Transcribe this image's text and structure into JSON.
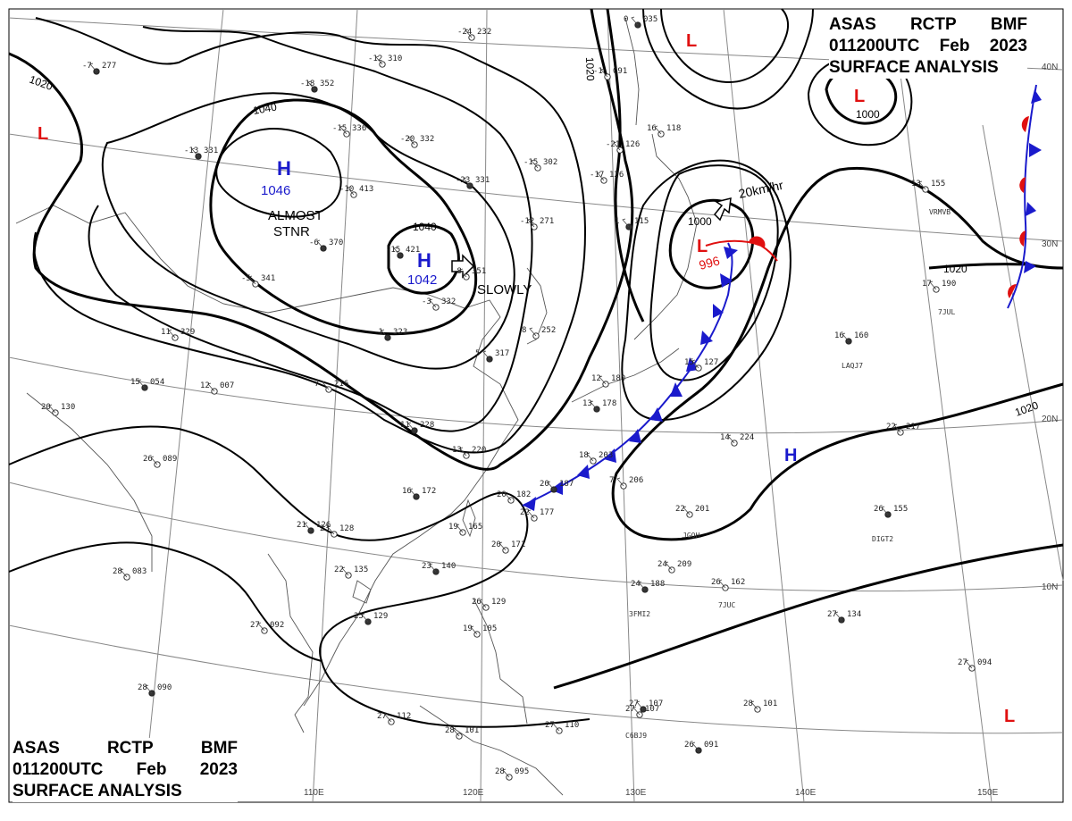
{
  "header": {
    "line1": [
      "ASAS",
      "RCTP",
      "BMF"
    ],
    "line2": [
      "011200UTC",
      "Feb",
      "2023"
    ],
    "line3": "SURFACE ANALYSIS"
  },
  "colors": {
    "high": "#1a1acc",
    "low": "#e01010",
    "cold_front": "#1a1acc",
    "warm_front": "#e01010",
    "isobar": "#000000",
    "grid": "#888888",
    "coast": "#555555"
  },
  "isobar_labels": [
    "1020",
    "1020",
    "1040",
    "1040",
    "1000",
    "1000",
    "1020",
    "1020"
  ],
  "pressure_centers": [
    {
      "type": "H",
      "value": "1046",
      "note1": "ALMOST",
      "note2": "STNR"
    },
    {
      "type": "H",
      "value": "1042",
      "note1": "SLOWLY"
    },
    {
      "type": "H"
    },
    {
      "type": "L",
      "value": "996",
      "note1": "20km/hr"
    },
    {
      "type": "L"
    },
    {
      "type": "L"
    },
    {
      "type": "L"
    },
    {
      "type": "L"
    }
  ],
  "longitude_labels": [
    "110E",
    "120E",
    "130E",
    "140E",
    "150E"
  ],
  "latitude_labels": [
    "40N",
    "30N",
    "20N",
    "10N"
  ],
  "station_ids": [
    "VRMVB",
    "7JUL",
    "LAQJ7",
    "JGQH",
    "DIGT2",
    "7JUC",
    "3FMI2",
    "C6BJ9"
  ],
  "station_obs": [
    {
      "t": "-7",
      "p": "277"
    },
    {
      "t": "-12",
      "p": "310"
    },
    {
      "t": "-24",
      "p": "232"
    },
    {
      "t": "-18",
      "p": "352"
    },
    {
      "t": "-15",
      "p": "336"
    },
    {
      "t": "-20",
      "p": "332"
    },
    {
      "t": "-13",
      "p": "331"
    },
    {
      "t": "-10",
      "p": "413"
    },
    {
      "t": "-15",
      "p": "302"
    },
    {
      "t": "-23",
      "p": "331"
    },
    {
      "t": "-17",
      "p": "126"
    },
    {
      "t": "-21",
      "p": "126"
    },
    {
      "t": "-6",
      "p": "370"
    },
    {
      "t": "-5",
      "p": "341"
    },
    {
      "t": "-3",
      "p": "332"
    },
    {
      "t": "-15",
      "p": "421"
    },
    {
      "t": "-12",
      "p": "271"
    },
    {
      "t": "-8",
      "p": "351"
    },
    {
      "t": "-1",
      "p": "323"
    },
    {
      "t": "11",
      "p": "329"
    },
    {
      "t": "8",
      "p": "252"
    },
    {
      "t": "5",
      "p": "317"
    },
    {
      "t": "12",
      "p": "007"
    },
    {
      "t": "7",
      "p": "216"
    },
    {
      "t": "11",
      "p": "228"
    },
    {
      "t": "13",
      "p": "220"
    },
    {
      "t": "12",
      "p": "180"
    },
    {
      "t": "13",
      "p": "178"
    },
    {
      "t": "15",
      "p": "127"
    },
    {
      "t": "18",
      "p": "203"
    },
    {
      "t": "20",
      "p": "187"
    },
    {
      "t": "20",
      "p": "182"
    },
    {
      "t": "22",
      "p": "177"
    },
    {
      "t": "16",
      "p": "172"
    },
    {
      "t": "19",
      "p": "165"
    },
    {
      "t": "20",
      "p": "171"
    },
    {
      "t": "23",
      "p": "140"
    },
    {
      "t": "22",
      "p": "135"
    },
    {
      "t": "23",
      "p": "128"
    },
    {
      "t": "21",
      "p": "126"
    },
    {
      "t": "26",
      "p": "089"
    },
    {
      "t": "20",
      "p": "130"
    },
    {
      "t": "15",
      "p": "054"
    },
    {
      "t": "28",
      "p": "083"
    },
    {
      "t": "27",
      "p": "092"
    },
    {
      "t": "25",
      "p": "129"
    },
    {
      "t": "26",
      "p": "129"
    },
    {
      "t": "19",
      "p": "105"
    },
    {
      "t": "28",
      "p": "090"
    },
    {
      "t": "27",
      "p": "112"
    },
    {
      "t": "28",
      "p": "101"
    },
    {
      "t": "27",
      "p": "107"
    },
    {
      "t": "27",
      "p": "110"
    },
    {
      "t": "28",
      "p": "095"
    },
    {
      "t": "26",
      "p": "091"
    },
    {
      "t": "27",
      "p": "107"
    },
    {
      "t": "28",
      "p": "101"
    },
    {
      "t": "27",
      "p": "134"
    },
    {
      "t": "27",
      "p": "094"
    },
    {
      "t": "24",
      "p": "209"
    },
    {
      "t": "24",
      "p": "188"
    },
    {
      "t": "26",
      "p": "162"
    },
    {
      "t": "22",
      "p": "201"
    },
    {
      "t": "26",
      "p": "155"
    },
    {
      "t": "22",
      "p": "217"
    },
    {
      "t": "14",
      "p": "224"
    },
    {
      "t": "16",
      "p": "160"
    },
    {
      "t": "17",
      "p": "190"
    },
    {
      "t": "13",
      "p": "155"
    },
    {
      "t": "1",
      "p": "115"
    },
    {
      "t": "7",
      "p": "206"
    },
    {
      "t": "16",
      "p": "118"
    },
    {
      "t": "0",
      "p": "035"
    },
    {
      "t": "-1",
      "p": "091"
    }
  ]
}
